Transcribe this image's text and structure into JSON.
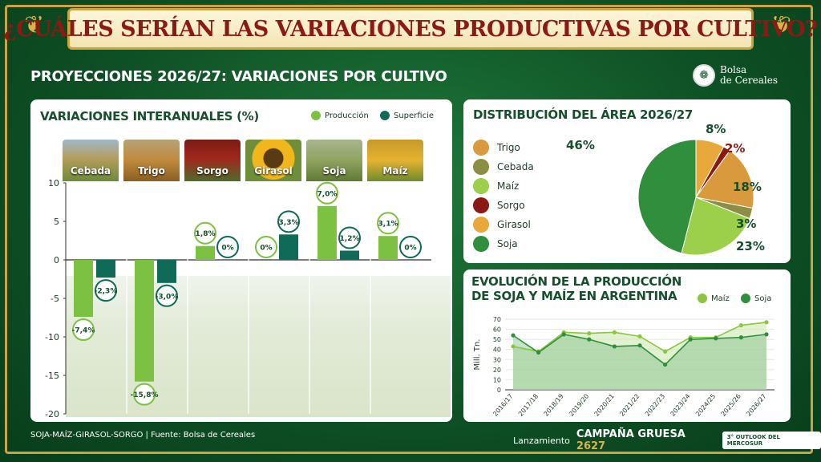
{
  "header": {
    "title": "¿CUÁLES SERÍAN LAS VARIACIONES PRODUCTIVAS POR CULTIVO?",
    "subtitle": "PROYECCIONES 2026/27: VARIACIONES POR CULTIVO",
    "logo_line1": "Bolsa",
    "logo_line2": "de Cereales"
  },
  "footer": {
    "left": "SOJA-MAÍZ-GIRASOL-SORGO   |   Fuente: Bolsa de Cereales",
    "lanzamiento": "Lanzamiento",
    "campana": "CAMPAÑA GRUESA",
    "campana_year": "2627",
    "badge": "3° OUTLOOK DEL MERCOSUR"
  },
  "colors": {
    "produccion": "#7dc142",
    "superficie": "#0f6b58",
    "trigo": "#d89a3c",
    "cebada": "#8d8e45",
    "maiz": "#9ccf4a",
    "sorgo": "#8b1a14",
    "girasol": "#e8a93a",
    "soja": "#2f8f3c"
  },
  "chart_data": [
    {
      "type": "bar",
      "title": "VARIACIONES INTERANUALES (%)",
      "categories": [
        "Cebada",
        "Trigo",
        "Sorgo",
        "Girasol",
        "Soja",
        "Maíz"
      ],
      "series": [
        {
          "name": "Producción",
          "values": [
            -7.4,
            -15.8,
            1.8,
            0,
            7.0,
            3.1
          ],
          "labels": [
            "-7,4%",
            "-15,8%",
            "1,8%",
            "0%",
            "7,0%",
            "3,1%"
          ]
        },
        {
          "name": "Superficie",
          "values": [
            -2.3,
            -3.0,
            0,
            3.3,
            1.2,
            0
          ],
          "labels": [
            "-2,3%",
            "-3,0%",
            "0%",
            "3,3%",
            "1,2%",
            "0%"
          ]
        }
      ],
      "ylim": [
        -20,
        10
      ],
      "yticks": [
        "10",
        "5",
        "0",
        "-5",
        "-10",
        "-15",
        "-20"
      ],
      "grid": false,
      "legend_position": "top-right"
    },
    {
      "type": "pie",
      "title": "DISTRIBUCIÓN DEL ÁREA 2026/27",
      "categories": [
        "Trigo",
        "Cebada",
        "Maíz",
        "Sorgo",
        "Girasol",
        "Soja"
      ],
      "values": [
        18,
        3,
        23,
        2,
        8,
        46
      ],
      "labels": [
        "18%",
        "3%",
        "23%",
        "2%",
        "8%",
        "46%"
      ],
      "legend_position": "left"
    },
    {
      "type": "line",
      "title_line1": "EVOLUCIÓN DE LA PRODUCCIÓN",
      "title_line2": "DE SOJA Y MAÍZ EN ARGENTINA",
      "ylabel": "Mill. Tn.",
      "x": [
        "2016/17",
        "2017/18",
        "2018/19",
        "2019/20",
        "2020/21",
        "2021/22",
        "2022/23",
        "2023/24",
        "2024/25",
        "2025/26",
        "2026/27"
      ],
      "series": [
        {
          "name": "Maíz",
          "values": [
            43,
            38,
            57,
            56,
            57,
            53,
            38,
            52,
            52,
            64,
            67
          ]
        },
        {
          "name": "Soja",
          "values": [
            54,
            37,
            55,
            50,
            43,
            44,
            25,
            50,
            51,
            52,
            55
          ]
        }
      ],
      "ylim": [
        0,
        70
      ],
      "yticks": [
        "70",
        "60",
        "50",
        "40",
        "30",
        "20",
        "10",
        "0"
      ],
      "grid": true,
      "legend_position": "top-right"
    }
  ]
}
